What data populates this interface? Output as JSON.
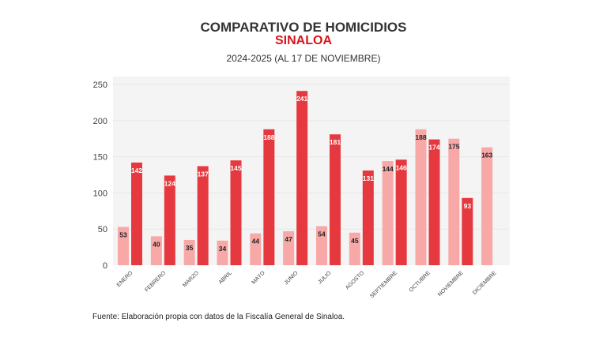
{
  "chart_data": {
    "type": "bar",
    "title": "COMPARATIVO DE HOMICIDIOS",
    "subtitle_highlight": "SINALOA",
    "subtitle": "2024-2025 (AL 17 DE NOVIEMBRE)",
    "categories": [
      "ENERO",
      "FEBRERO",
      "MARZO",
      "ABRIL",
      "MAYO",
      "JUNIO",
      "JULIO",
      "AGOSTO",
      "SEPTIEMBRE",
      "OCTUBRE",
      "NOVIEMBRE",
      "DICIEMBRE"
    ],
    "series": [
      {
        "values": [
          53,
          40,
          35,
          34,
          44,
          47,
          54,
          45,
          144,
          188,
          175,
          163
        ],
        "color": "#f7a8a7"
      },
      {
        "values": [
          142,
          124,
          137,
          145,
          188,
          241,
          181,
          131,
          146,
          174,
          93,
          null
        ],
        "color": "#e5393f"
      }
    ],
    "ylim": [
      0,
      250
    ],
    "yticks": [
      0,
      50,
      100,
      150,
      200,
      250
    ],
    "grid": true,
    "xlabel": "",
    "ylabel": "",
    "source": "Fuente: Elaboración propia con datos de la Fiscalía General de Sinaloa."
  },
  "colors": {
    "title": "#333333",
    "highlight": "#d9141b",
    "plot_bg": "#f4f4f4"
  }
}
